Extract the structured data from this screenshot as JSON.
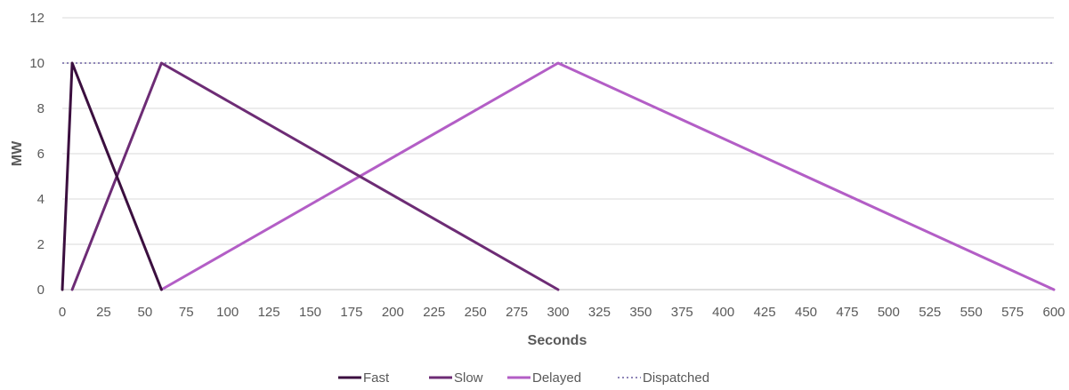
{
  "chart_data": {
    "type": "line",
    "xlabel": "Seconds",
    "ylabel": "MW",
    "xlim": [
      0,
      600
    ],
    "ylim": [
      0,
      12
    ],
    "x_ticks": [
      0,
      25,
      50,
      75,
      100,
      125,
      150,
      175,
      200,
      225,
      250,
      275,
      300,
      325,
      350,
      375,
      400,
      425,
      450,
      475,
      500,
      525,
      550,
      575,
      600
    ],
    "y_ticks": [
      0,
      2,
      4,
      6,
      8,
      10,
      12
    ],
    "grid": "horizontal",
    "legend_position": "bottom",
    "series": [
      {
        "name": "Fast",
        "color": "#3b0f3f",
        "style": "solid",
        "points": [
          [
            0,
            0
          ],
          [
            6,
            10
          ],
          [
            60,
            0
          ]
        ]
      },
      {
        "name": "Slow",
        "color": "#6d2c75",
        "style": "solid",
        "points": [
          [
            6,
            0
          ],
          [
            60,
            10
          ],
          [
            300,
            0
          ]
        ]
      },
      {
        "name": "Delayed",
        "color": "#b35ec6",
        "style": "solid",
        "points": [
          [
            60,
            0
          ],
          [
            300,
            10
          ],
          [
            600,
            0
          ]
        ]
      },
      {
        "name": "Dispatched",
        "color": "#8f86b8",
        "style": "dotted",
        "points": [
          [
            0,
            10
          ],
          [
            600,
            10
          ]
        ]
      }
    ]
  }
}
